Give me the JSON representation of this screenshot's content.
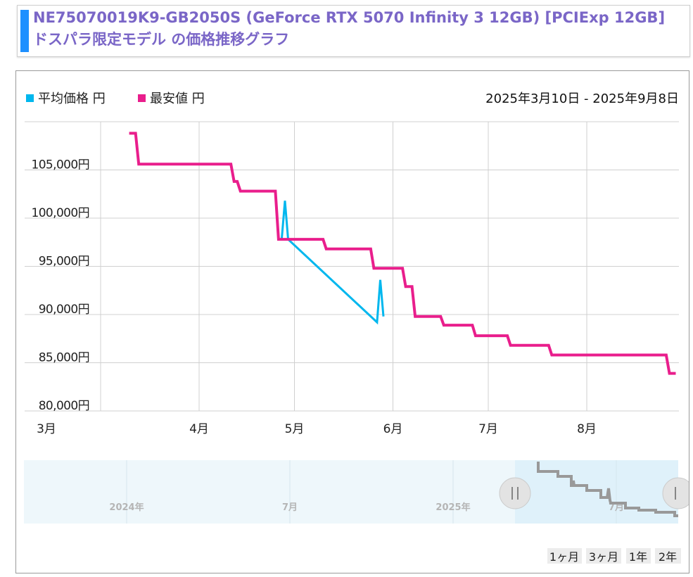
{
  "title": "NE75070019K9-GB2050S (GeForce RTX 5070 Infinity 3 12GB) [PCIExp 12GB] ドスパラ限定モデル の価格推移グラフ",
  "legend": {
    "avg_label": "平均価格 円",
    "min_label": "最安値 円"
  },
  "date_range": "2025年3月10日 - 2025年9月8日",
  "colors": {
    "avg": "#00b7ee",
    "min": "#e91e8c",
    "navigator_line": "#999999",
    "title": "#7a66c7",
    "accent_bar": "#1e90ff"
  },
  "navigator": {
    "labels": [
      "2024年",
      "7月",
      "2025年",
      "7月"
    ]
  },
  "period_buttons": [
    "1ヶ月",
    "3ヶ月",
    "1年",
    "2年"
  ],
  "chart_data": {
    "type": "line",
    "title": "",
    "xlabel": "",
    "ylabel": "",
    "x_range": [
      "2025-03-01",
      "2025-08-30"
    ],
    "ylim": [
      80000,
      110000
    ],
    "y_ticks": [
      80000,
      85000,
      90000,
      95000,
      100000,
      105000
    ],
    "y_tick_labels": [
      "80,000円",
      "85,000円",
      "90,000円",
      "95,000円",
      "100,000円",
      "105,000円"
    ],
    "x_ticks": [
      "2025-03-01",
      "2025-04-01",
      "2025-05-01",
      "2025-06-01",
      "2025-07-01",
      "2025-08-01"
    ],
    "x_tick_labels": [
      "3月",
      "4月",
      "5月",
      "6月",
      "7月",
      "8月"
    ],
    "grid": true,
    "legend_position": "top-left",
    "series": [
      {
        "name": "平均価格 円",
        "x": [
          "2025-04-27",
          "2025-04-28",
          "2025-04-29",
          "2025-05-27",
          "2025-05-28",
          "2025-05-29"
        ],
        "values": [
          97800,
          101800,
          97800,
          89200,
          93600,
          89800
        ]
      },
      {
        "name": "最安値 円",
        "x": [
          "2025-03-10",
          "2025-03-12",
          "2025-03-13",
          "2025-04-01",
          "2025-04-11",
          "2025-04-12",
          "2025-04-13",
          "2025-04-14",
          "2025-04-25",
          "2025-04-26",
          "2025-05-10",
          "2025-05-11",
          "2025-05-25",
          "2025-05-26",
          "2025-06-01",
          "2025-06-02",
          "2025-06-04",
          "2025-06-05",
          "2025-06-07",
          "2025-06-08",
          "2025-06-16",
          "2025-06-17",
          "2025-06-26",
          "2025-06-27",
          "2025-07-07",
          "2025-07-08",
          "2025-07-20",
          "2025-07-21",
          "2025-08-26",
          "2025-08-27",
          "2025-08-29"
        ],
        "values": [
          108800,
          108800,
          105600,
          105600,
          105600,
          103800,
          103800,
          102800,
          102800,
          97800,
          97800,
          96800,
          96800,
          94800,
          94800,
          94800,
          94800,
          92900,
          92900,
          89800,
          89800,
          88900,
          88900,
          87800,
          87800,
          86800,
          86800,
          85800,
          85800,
          83900,
          83900
        ]
      }
    ]
  }
}
